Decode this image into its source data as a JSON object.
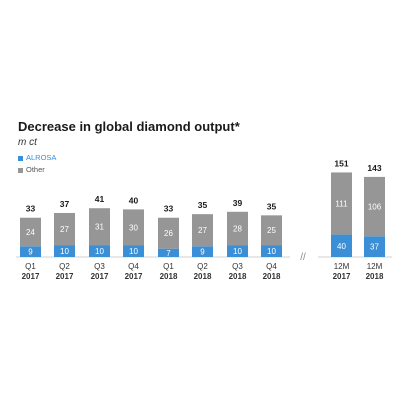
{
  "chart_data": {
    "type": "bar",
    "stacked": true,
    "title": "Decrease in global diamond output*",
    "subtitle": "m ct",
    "xlabel": "",
    "ylabel": "",
    "categories": [
      [
        "Q1",
        "2017"
      ],
      [
        "Q2",
        "2017"
      ],
      [
        "Q3",
        "2017"
      ],
      [
        "Q4",
        "2017"
      ],
      [
        "Q1",
        "2018"
      ],
      [
        "Q2",
        "2018"
      ],
      [
        "Q3",
        "2018"
      ],
      [
        "Q4",
        "2018"
      ],
      [
        "12M",
        "2017"
      ],
      [
        "12M",
        "2018"
      ]
    ],
    "series": [
      {
        "name": "ALROSA",
        "color": "#3a8fd6",
        "values": [
          9,
          10,
          10,
          10,
          7,
          9,
          10,
          10,
          40,
          37
        ]
      },
      {
        "name": "Other",
        "color": "#969696",
        "values": [
          24,
          27,
          31,
          30,
          26,
          27,
          28,
          25,
          111,
          106
        ]
      }
    ],
    "totals": [
      33,
      37,
      41,
      40,
      33,
      35,
      39,
      35,
      151,
      143
    ],
    "groups": [
      {
        "name": "quarterly",
        "indices": [
          0,
          1,
          2,
          3,
          4,
          5,
          6,
          7
        ]
      },
      {
        "name": "annual",
        "indices": [
          8,
          9
        ]
      }
    ],
    "axis_break": "//",
    "legend_position": "top-left",
    "grid": false
  }
}
